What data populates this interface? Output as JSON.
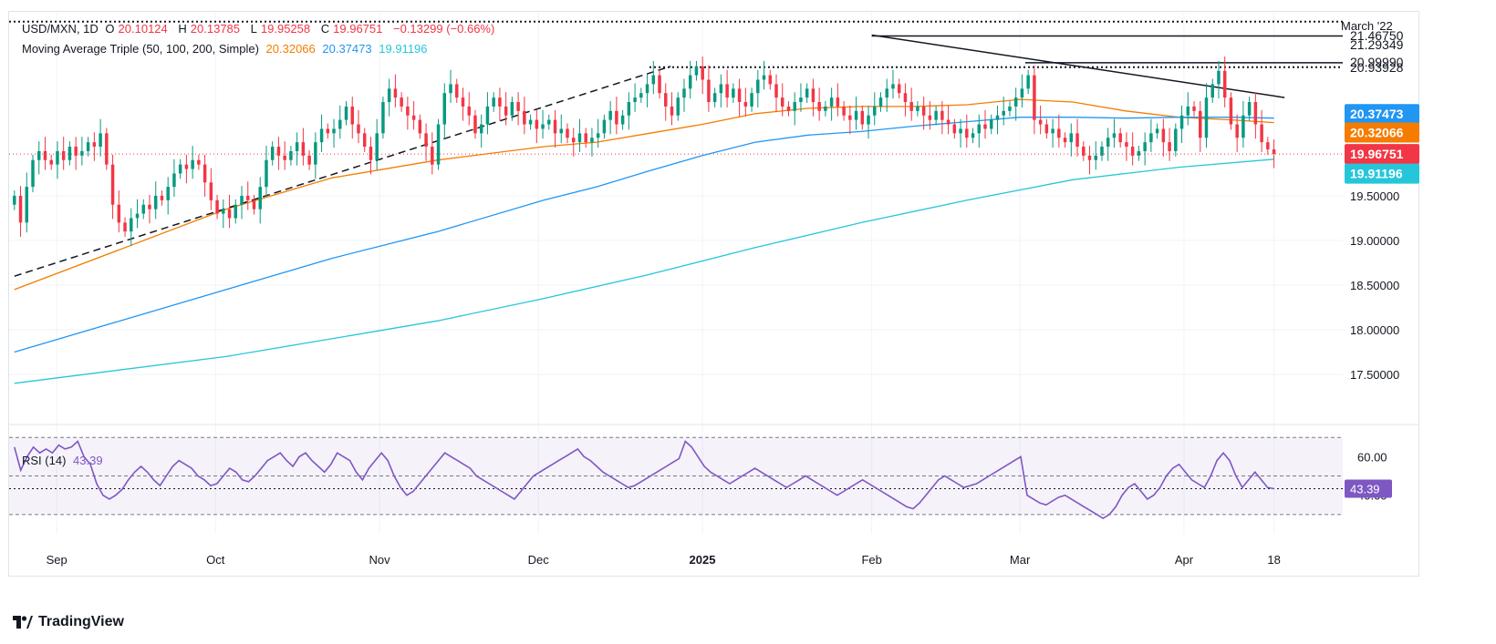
{
  "header": {
    "symbol": "USD/MXN, 1D",
    "open_label": "O",
    "open": "20.10124",
    "high_label": "H",
    "high": "20.13785",
    "low_label": "L",
    "low": "19.95258",
    "close_label": "C",
    "close": "19.96751",
    "change": "−0.13299 (−0.66%)",
    "ma_label": "Moving Average Triple (50, 100, 200, Simple)",
    "ma50": "20.32066",
    "ma100": "20.37473",
    "ma200": "19.91196",
    "rsi_label": "RSI (14)",
    "rsi_value": "43.39",
    "march22_note": "March '22"
  },
  "colors": {
    "up": "#089981",
    "down": "#f23645",
    "ma50": "#f57c00",
    "ma100": "#2196f3",
    "ma200": "#26c6da",
    "rsi": "#7e57c2",
    "trend": "#131722",
    "last_price": "#f23645"
  },
  "brand": {
    "name": "TradingView",
    "icon": "tradingview-logo-icon"
  },
  "chart_data": [
    {
      "type": "candlestick",
      "title": "USD/MXN, 1D",
      "ylim": [
        17.0,
        21.55
      ],
      "y_ticks": [
        "17.50000",
        "18.00000",
        "18.50000",
        "19.00000",
        "19.50000"
      ],
      "price_labels": [
        {
          "value": 21.4675,
          "text": "21.46750",
          "style": "plain"
        },
        {
          "value": 21.29349,
          "text": "21.29349",
          "style": "plain"
        },
        {
          "value": 20.9999,
          "text": "20.99990",
          "style": "plain"
        },
        {
          "value": 20.93928,
          "text": "20.93928",
          "style": "plain"
        },
        {
          "value": 20.37473,
          "text": "20.37473",
          "style": "ma100"
        },
        {
          "value": 20.32066,
          "text": "20.32066",
          "style": "ma50"
        },
        {
          "value": 19.96751,
          "text": "19.96751",
          "style": "last"
        },
        {
          "value": 19.91196,
          "text": "19.91196",
          "style": "ma200"
        }
      ],
      "x_labels": [
        {
          "text": "Sep",
          "day": 8,
          "bold": false
        },
        {
          "text": "Oct",
          "day": 38,
          "bold": false
        },
        {
          "text": "Nov",
          "day": 69,
          "bold": false
        },
        {
          "text": "Dec",
          "day": 99,
          "bold": false
        },
        {
          "text": "2025",
          "day": 130,
          "bold": true
        },
        {
          "text": "Feb",
          "day": 162,
          "bold": false
        },
        {
          "text": "Mar",
          "day": 190,
          "bold": false
        },
        {
          "text": "Apr",
          "day": 221,
          "bold": false
        },
        {
          "text": "18",
          "day": 238,
          "bold": false
        }
      ],
      "day_range": [
        -1,
        251
      ],
      "candle_closes": [
        19.5,
        19.2,
        19.6,
        19.9,
        20.0,
        19.9,
        19.85,
        20.0,
        19.9,
        20.05,
        19.95,
        20.0,
        20.1,
        20.05,
        20.2,
        19.85,
        19.4,
        19.2,
        19.1,
        19.25,
        19.3,
        19.4,
        19.35,
        19.5,
        19.45,
        19.6,
        19.75,
        19.85,
        19.8,
        19.9,
        19.85,
        19.65,
        19.45,
        19.3,
        19.35,
        19.25,
        19.4,
        19.5,
        19.45,
        19.35,
        19.6,
        19.9,
        20.05,
        19.95,
        19.9,
        20.0,
        20.1,
        19.95,
        19.85,
        20.1,
        20.25,
        20.2,
        20.25,
        20.35,
        20.5,
        20.3,
        20.2,
        20.05,
        19.9,
        20.2,
        20.55,
        20.7,
        20.6,
        20.5,
        20.4,
        20.35,
        20.2,
        20.05,
        19.85,
        20.3,
        20.65,
        20.75,
        20.6,
        20.5,
        20.4,
        20.2,
        20.3,
        20.5,
        20.6,
        20.5,
        20.4,
        20.55,
        20.45,
        20.3,
        20.35,
        20.25,
        20.3,
        20.35,
        20.2,
        20.25,
        20.15,
        20.1,
        20.2,
        20.1,
        20.15,
        20.2,
        20.35,
        20.45,
        20.3,
        20.4,
        20.55,
        20.6,
        20.65,
        20.75,
        20.85,
        20.65,
        20.5,
        20.4,
        20.6,
        20.7,
        20.85,
        20.95,
        20.8,
        20.55,
        20.65,
        20.75,
        20.6,
        20.7,
        20.55,
        20.5,
        20.65,
        20.8,
        20.85,
        20.75,
        20.6,
        20.5,
        20.45,
        20.55,
        20.6,
        20.7,
        20.55,
        20.45,
        20.5,
        20.6,
        20.5,
        20.4,
        20.35,
        20.45,
        20.3,
        20.4,
        20.5,
        20.6,
        20.7,
        20.75,
        20.65,
        20.55,
        20.45,
        20.5,
        20.4,
        20.35,
        20.45,
        20.35,
        20.3,
        20.2,
        20.25,
        20.15,
        20.2,
        20.3,
        20.25,
        20.35,
        20.4,
        20.45,
        20.5,
        20.6,
        20.7,
        20.85,
        20.35,
        20.3,
        20.2,
        20.25,
        20.15,
        20.1,
        20.2,
        20.05,
        19.95,
        19.9,
        19.95,
        20.05,
        20.15,
        20.2,
        20.1,
        20.05,
        19.95,
        20.0,
        20.1,
        20.2,
        20.25,
        20.1,
        20.0,
        20.25,
        20.4,
        20.5,
        20.45,
        20.15,
        20.6,
        20.75,
        20.9,
        20.6,
        20.3,
        20.15,
        20.4,
        20.55,
        20.3,
        20.1,
        20.02,
        19.97
      ],
      "overlays": [
        {
          "name": "Moving Average 50",
          "value_last": 20.32066,
          "points": [
            [
              0,
              18.45
            ],
            [
              20,
              18.9
            ],
            [
              40,
              19.35
            ],
            [
              60,
              19.7
            ],
            [
              80,
              19.9
            ],
            [
              100,
              20.05
            ],
            [
              110,
              20.1
            ],
            [
              120,
              20.2
            ],
            [
              130,
              20.3
            ],
            [
              140,
              20.42
            ],
            [
              150,
              20.48
            ],
            [
              160,
              20.5
            ],
            [
              170,
              20.5
            ],
            [
              180,
              20.52
            ],
            [
              190,
              20.58
            ],
            [
              200,
              20.55
            ],
            [
              210,
              20.45
            ],
            [
              220,
              20.38
            ],
            [
              230,
              20.35
            ],
            [
              238,
              20.32
            ]
          ]
        },
        {
          "name": "Moving Average 100",
          "value_last": 20.37473,
          "points": [
            [
              0,
              17.75
            ],
            [
              20,
              18.1
            ],
            [
              40,
              18.45
            ],
            [
              60,
              18.8
            ],
            [
              80,
              19.1
            ],
            [
              100,
              19.45
            ],
            [
              110,
              19.6
            ],
            [
              120,
              19.78
            ],
            [
              130,
              19.95
            ],
            [
              140,
              20.1
            ],
            [
              150,
              20.18
            ],
            [
              160,
              20.22
            ],
            [
              170,
              20.28
            ],
            [
              180,
              20.33
            ],
            [
              190,
              20.38
            ],
            [
              200,
              20.38
            ],
            [
              210,
              20.37
            ],
            [
              220,
              20.38
            ],
            [
              230,
              20.38
            ],
            [
              238,
              20.37
            ]
          ]
        },
        {
          "name": "Moving Average 200",
          "value_last": 19.91196,
          "points": [
            [
              0,
              17.4
            ],
            [
              40,
              17.7
            ],
            [
              80,
              18.1
            ],
            [
              100,
              18.35
            ],
            [
              120,
              18.62
            ],
            [
              140,
              18.92
            ],
            [
              160,
              19.2
            ],
            [
              180,
              19.45
            ],
            [
              200,
              19.68
            ],
            [
              220,
              19.82
            ],
            [
              238,
              19.91
            ]
          ]
        },
        {
          "name": "trendline-channel",
          "style": "dashed",
          "points": [
            [
              0,
              18.6
            ],
            [
              124,
              20.95
            ]
          ]
        },
        {
          "name": "trendline-resistance",
          "style": "solid",
          "points": [
            [
              162,
              21.3
            ],
            [
              240,
              20.6
            ]
          ]
        },
        {
          "name": "hline-21.29",
          "style": "solid",
          "points": [
            [
              162,
              21.29
            ],
            [
              251,
              21.29
            ]
          ]
        },
        {
          "name": "hline-20.99",
          "style": "solid",
          "points": [
            [
              191,
              20.99
            ],
            [
              251,
              20.99
            ]
          ]
        },
        {
          "name": "hline-20.94",
          "style": "dotted",
          "points": [
            [
              120,
              20.94
            ],
            [
              251,
              20.94
            ]
          ]
        },
        {
          "name": "hline-21.47",
          "style": "dotted",
          "points": [
            [
              -1,
              21.45
            ],
            [
              251,
              21.45
            ]
          ]
        }
      ]
    },
    {
      "type": "line",
      "title": "RSI (14)",
      "ylim": [
        20,
        72
      ],
      "y_ticks": [
        "40.00",
        "60.00"
      ],
      "bands": [
        30,
        70
      ],
      "levels": [
        50,
        43.39
      ],
      "series": [
        {
          "name": "RSI (14)",
          "values": [
            65,
            53,
            60,
            65,
            62,
            64,
            62,
            66,
            64,
            65,
            68,
            60,
            56,
            46,
            40,
            38,
            40,
            43,
            48,
            52,
            55,
            52,
            48,
            45,
            50,
            55,
            58,
            56,
            54,
            50,
            48,
            45,
            46,
            50,
            54,
            52,
            48,
            47,
            50,
            54,
            58,
            60,
            62,
            58,
            55,
            60,
            62,
            58,
            55,
            52,
            56,
            62,
            60,
            58,
            52,
            48,
            54,
            58,
            62,
            58,
            50,
            44,
            40,
            42,
            46,
            50,
            54,
            58,
            62,
            60,
            58,
            56,
            54,
            50,
            48,
            46,
            44,
            42,
            40,
            38,
            42,
            46,
            50,
            52,
            54,
            56,
            58,
            60,
            62,
            64,
            60,
            58,
            55,
            52,
            50,
            48,
            46,
            44,
            45,
            47,
            49,
            51,
            53,
            55,
            57,
            59,
            68,
            65,
            60,
            55,
            52,
            50,
            48,
            46,
            48,
            50,
            52,
            54,
            52,
            50,
            48,
            46,
            44,
            46,
            48,
            50,
            48,
            46,
            44,
            42,
            40,
            42,
            44,
            46,
            48,
            46,
            44,
            42,
            40,
            38,
            36,
            34,
            33,
            36,
            40,
            44,
            48,
            50,
            48,
            46,
            44,
            45,
            46,
            48,
            50,
            52,
            54,
            56,
            58,
            60,
            40,
            38,
            36,
            35,
            37,
            39,
            40,
            38,
            36,
            34,
            32,
            30,
            28,
            30,
            34,
            40,
            44,
            46,
            42,
            38,
            40,
            44,
            50,
            54,
            56,
            52,
            48,
            46,
            44,
            50,
            58,
            62,
            58,
            50,
            44,
            48,
            52,
            48,
            44,
            43.39
          ]
        }
      ]
    }
  ]
}
